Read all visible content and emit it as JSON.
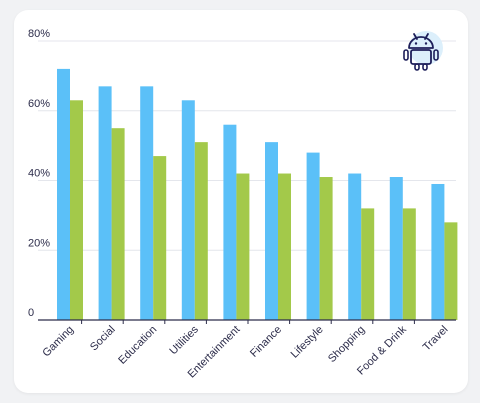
{
  "chart_data": {
    "type": "bar",
    "categories": [
      "Gaming",
      "Social",
      "Education",
      "Utilities",
      "Entertainment",
      "Finance",
      "Lifestyle",
      "Shopping",
      "Food & Drink",
      "Travel"
    ],
    "series": [
      {
        "values": [
          72,
          67,
          67,
          63,
          56,
          51,
          48,
          42,
          41,
          39
        ],
        "color": "#5bc0f8"
      },
      {
        "values": [
          63,
          55,
          47,
          51,
          42,
          42,
          41,
          32,
          32,
          28
        ],
        "color": "#a3c94a"
      }
    ],
    "yticks": [
      "0",
      "20%",
      "40%",
      "60%",
      "80%"
    ],
    "ylim": [
      0,
      80
    ],
    "grid": true,
    "legend": "none",
    "icon": "android-icon"
  }
}
